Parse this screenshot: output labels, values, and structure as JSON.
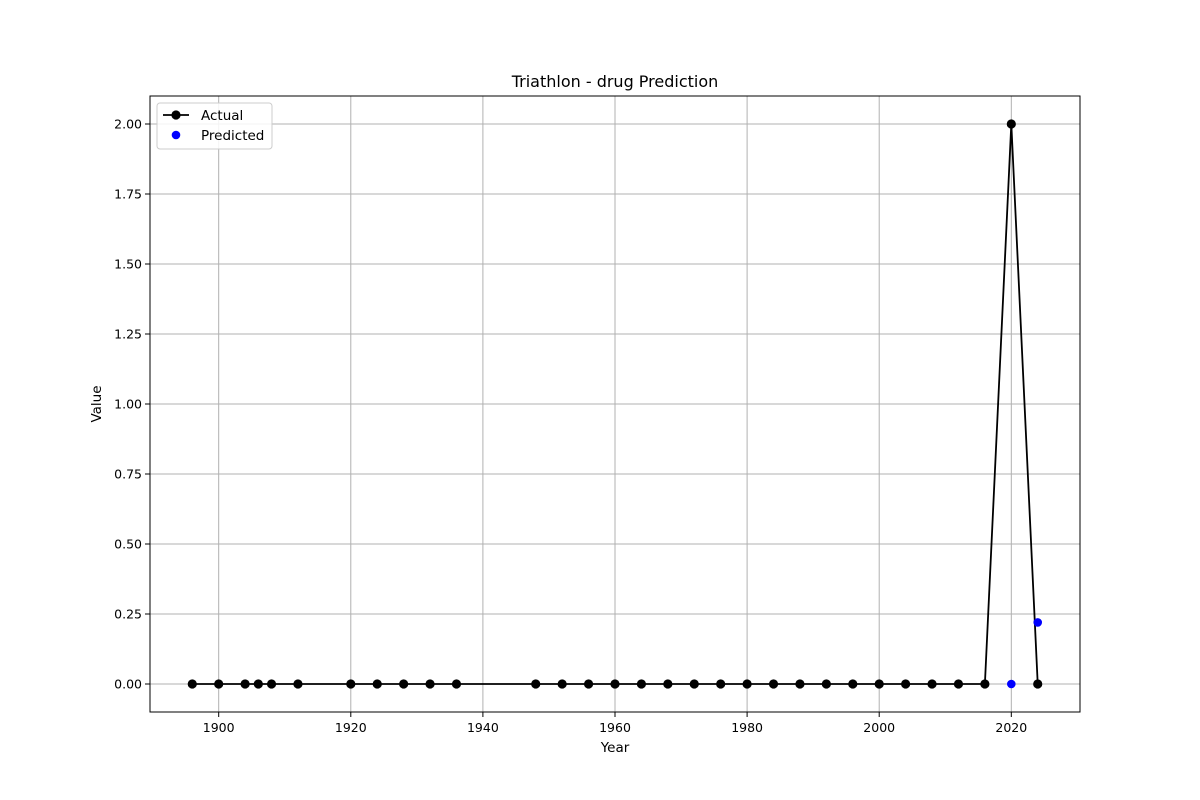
{
  "chart_data": {
    "type": "line",
    "title": "Triathlon - drug Prediction",
    "xlabel": "Year",
    "ylabel": "Value",
    "xlim": [
      1889.6,
      2030.4
    ],
    "ylim": [
      -0.1,
      2.1
    ],
    "xticks": [
      1900,
      1920,
      1940,
      1960,
      1980,
      2000,
      2020
    ],
    "yticks": [
      0.0,
      0.25,
      0.5,
      0.75,
      1.0,
      1.25,
      1.5,
      1.75,
      2.0
    ],
    "ytick_labels": [
      "0.00",
      "0.25",
      "0.50",
      "0.75",
      "1.00",
      "1.25",
      "1.50",
      "1.75",
      "2.00"
    ],
    "grid": true,
    "legend": "top-left",
    "series": [
      {
        "name": "Actual",
        "kind": "line-marker",
        "color": "#000000",
        "x": [
          1896,
          1900,
          1904,
          1906,
          1908,
          1912,
          1920,
          1924,
          1928,
          1932,
          1936,
          1948,
          1952,
          1956,
          1960,
          1964,
          1968,
          1972,
          1976,
          1980,
          1984,
          1988,
          1992,
          1996,
          2000,
          2004,
          2008,
          2012,
          2016,
          2020,
          2024
        ],
        "y": [
          0,
          0,
          0,
          0,
          0,
          0,
          0,
          0,
          0,
          0,
          0,
          0,
          0,
          0,
          0,
          0,
          0,
          0,
          0,
          0,
          0,
          0,
          0,
          0,
          0,
          0,
          0,
          0,
          0,
          2,
          0
        ]
      },
      {
        "name": "Predicted",
        "kind": "scatter",
        "color": "#0000ff",
        "x": [
          2020,
          2024
        ],
        "y": [
          0.0,
          0.22
        ]
      }
    ]
  }
}
